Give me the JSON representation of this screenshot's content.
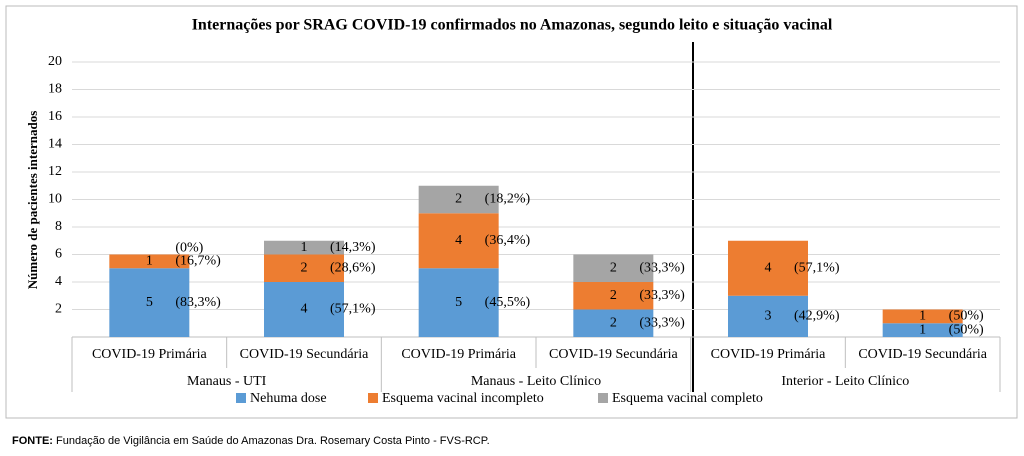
{
  "chart_data": {
    "type": "stacked_bar",
    "title": "Internações por SRAG COVID-19 confirmados no Amazonas, segundo leito e situação vacinal",
    "y_label": "Número de pacientes internados",
    "categories": [
      "COVID-19 Primária",
      "COVID-19 Secundária",
      "COVID-19 Primária",
      "COVID-19 Secundária",
      "COVID-19 Primária",
      "COVID-19 Secundária"
    ],
    "groups": [
      "Manaus - UTI",
      "Manaus - Leito Clínico",
      "Interior - Leito Clínico"
    ],
    "series": [
      {
        "name": "Nehuma dose",
        "color": "#5b9bd5",
        "values": [
          5,
          4,
          5,
          2,
          3,
          1
        ],
        "percent_labels": [
          "(83,3%)",
          "(57,1%)",
          "(45,5%)",
          "(33,3%)",
          "(42,9%)",
          "(50%)"
        ]
      },
      {
        "name": "Esquema vacinal incompleto",
        "color": "#ed7d31",
        "values": [
          1,
          2,
          4,
          2,
          4,
          1
        ],
        "percent_labels": [
          "(16,7%)",
          "(28,6%)",
          "(36,4%)",
          "(33,3%)",
          "(57,1%)",
          "(50%)"
        ]
      },
      {
        "name": "Esquema vacinal completo",
        "color": "#a5a5a5",
        "values": [
          0,
          1,
          2,
          2,
          0,
          0
        ],
        "percent_labels": [
          "(0%)",
          "(14,3%)",
          "(18,2%)",
          "(33,3%)",
          null,
          null
        ]
      }
    ],
    "ylim": [
      0,
      20
    ],
    "yticks": [
      2,
      4,
      6,
      8,
      10,
      12,
      14,
      16,
      18,
      20
    ],
    "grid": true
  },
  "source": {
    "label": "FONTE:",
    "text": "Fundação de Vigilância em Saúde do Amazonas Dra. Rosemary Costa Pinto - FVS-RCP."
  }
}
